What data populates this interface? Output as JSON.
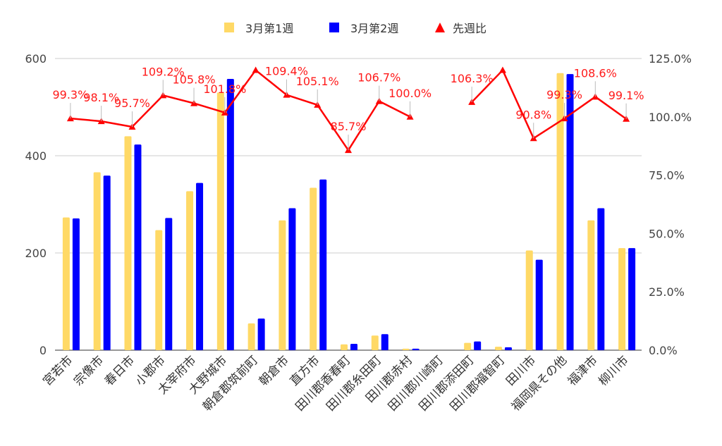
{
  "chart_data": {
    "type": "bar",
    "categories": [
      "宮若市",
      "宗像市",
      "春日市",
      "小郡市",
      "太宰府市",
      "大野城市",
      "朝倉郡筑前町",
      "朝倉市",
      "直方市",
      "田川郡香春町",
      "田川郡糸田町",
      "田川郡赤村",
      "田川郡川崎町",
      "田川郡添田町",
      "田川郡福智町",
      "田川市",
      "福岡県その他",
      "福津市",
      "柳川市"
    ],
    "series": [
      {
        "name": "3月第1週",
        "type": "bar",
        "axis": "left",
        "color": "#FFD966",
        "values": [
          273,
          366,
          440,
          247,
          327,
          530,
          55,
          267,
          334,
          12,
          30,
          3,
          null,
          15,
          7,
          205,
          570,
          267,
          210
        ]
      },
      {
        "name": "3月第2週",
        "type": "bar",
        "axis": "left",
        "color": "#0000FF",
        "values": [
          271,
          359,
          423,
          272,
          344,
          558,
          65,
          292,
          351,
          13,
          33,
          3,
          null,
          18,
          6,
          186,
          568,
          292,
          210
        ]
      },
      {
        "name": "先週比",
        "type": "line",
        "axis": "right",
        "color": "#FF0000",
        "values": [
          99.3,
          98.1,
          95.7,
          109.2,
          105.8,
          101.8,
          120.0,
          109.4,
          105.1,
          85.7,
          106.7,
          100.0,
          null,
          106.3,
          120.0,
          90.8,
          99.3,
          108.6,
          99.1
        ],
        "labels": [
          "99.3%",
          "98.1%",
          "95.7%",
          "109.2%",
          "105.8%",
          "101.8%",
          "",
          "109.4%",
          "105.1%",
          "85.7%",
          "106.7%",
          "100.0%",
          "",
          "106.3%",
          "",
          "90.8%",
          "99.3%",
          "108.6%",
          "99.1%"
        ]
      }
    ],
    "y_left": {
      "min": 0,
      "max": 600,
      "ticks": [
        "0",
        "200",
        "400",
        "600"
      ]
    },
    "y_right": {
      "min": 0,
      "max": 125,
      "ticks": [
        "0.0%",
        "25.0%",
        "50.0%",
        "75.0%",
        "100.0%",
        "125.0%"
      ]
    },
    "legend": {
      "position": "top",
      "items": [
        "3月第1週",
        "3月第2週",
        "先週比"
      ]
    },
    "grid": true
  }
}
